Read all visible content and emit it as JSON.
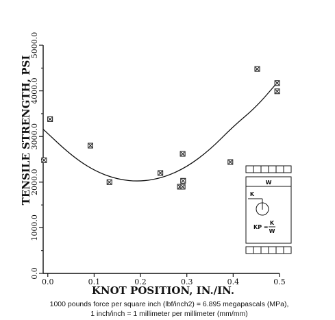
{
  "chart_data": {
    "type": "scatter",
    "xlabel": "KNOT POSITION, IN./IN.",
    "ylabel": "TENSILE STRENGTH, PSI",
    "xlim": [
      -0.01,
      0.5
    ],
    "ylim": [
      0,
      5000
    ],
    "xticks": [
      "0.0",
      "0.1",
      "0.2",
      "0.3",
      "0.4",
      "0.5"
    ],
    "yticks": [
      "0.0",
      "1000.0",
      "2000.0",
      "3000.0",
      "4000.0",
      "5000.0"
    ],
    "series": [
      {
        "marker": "boxed-x",
        "points": [
          {
            "x": -0.008,
            "y": 2480
          },
          {
            "x": 0.005,
            "y": 3380
          },
          {
            "x": 0.092,
            "y": 2800
          },
          {
            "x": 0.133,
            "y": 2000
          },
          {
            "x": 0.243,
            "y": 2200
          },
          {
            "x": 0.285,
            "y": 1900
          },
          {
            "x": 0.291,
            "y": 1900
          },
          {
            "x": 0.291,
            "y": 2620
          },
          {
            "x": 0.292,
            "y": 2030
          },
          {
            "x": 0.394,
            "y": 2440
          },
          {
            "x": 0.452,
            "y": 4480
          },
          {
            "x": 0.495,
            "y": 4170
          },
          {
            "x": 0.495,
            "y": 3990
          }
        ]
      },
      {
        "type": "line",
        "fit": "quadratic",
        "points": [
          {
            "x": -0.01,
            "y": 3160
          },
          {
            "x": 0.05,
            "y": 2590
          },
          {
            "x": 0.1,
            "y": 2250
          },
          {
            "x": 0.15,
            "y": 2060
          },
          {
            "x": 0.2,
            "y": 2010
          },
          {
            "x": 0.25,
            "y": 2100
          },
          {
            "x": 0.3,
            "y": 2330
          },
          {
            "x": 0.35,
            "y": 2710
          },
          {
            "x": 0.4,
            "y": 3220
          },
          {
            "x": 0.45,
            "y": 3650
          },
          {
            "x": 0.495,
            "y": 4180
          }
        ]
      }
    ],
    "inset": {
      "width_label": "W",
      "knot_label": "K",
      "formula_left": "KP =",
      "formula_num": "K",
      "formula_den": "W"
    },
    "footnote": [
      "1000 pounds force per square inch (lbf/inch2) = 6.895 megapascals (MPa),",
      "1 inch/inch = 1 millimeter per millimeter (mm/mm)"
    ]
  }
}
